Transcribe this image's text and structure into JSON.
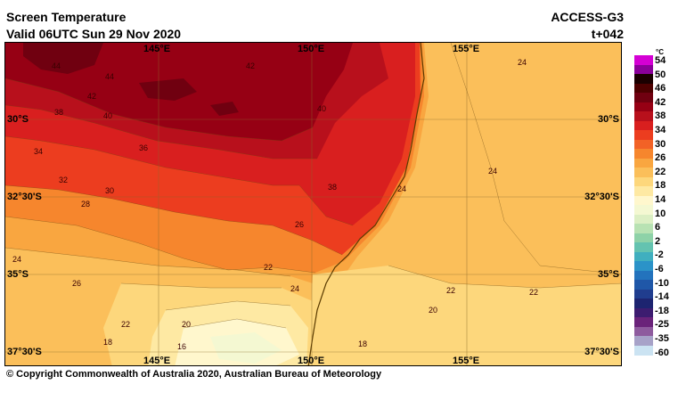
{
  "header": {
    "title": "Screen Temperature",
    "valid": "Valid 06UTC Sun 29 Nov 2020",
    "model": "ACCESS-G3",
    "step": "t+042"
  },
  "map": {
    "lon_labels": [
      "145°E",
      "150°E",
      "155°E"
    ],
    "lat_labels": [
      "30°S",
      "32°30'S",
      "35°S",
      "37°30'S"
    ],
    "contour_labels": [
      "44",
      "42",
      "44",
      "42",
      "40",
      "38",
      "36",
      "34",
      "32",
      "30",
      "28",
      "26",
      "24",
      "22",
      "20",
      "18",
      "16",
      "40",
      "38",
      "26",
      "24",
      "22",
      "24",
      "24",
      "22",
      "20",
      "18",
      "22",
      "24"
    ]
  },
  "legend": {
    "unit": "°C",
    "levels": [
      "54",
      "50",
      "46",
      "42",
      "38",
      "34",
      "30",
      "26",
      "22",
      "18",
      "14",
      "10",
      "6",
      "2",
      "-2",
      "-6",
      "-10",
      "-14",
      "-18",
      "-25",
      "-35",
      "-60"
    ],
    "colors": [
      "#d400d4",
      "#8a0099",
      "#1a0000",
      "#4d0000",
      "#700010",
      "#960014",
      "#b8101c",
      "#d91f1f",
      "#ec3d1f",
      "#f26226",
      "#f6862d",
      "#f9a640",
      "#fbbf5a",
      "#fdd77c",
      "#fee9a3",
      "#fff7cd",
      "#f4f8d2",
      "#dcefc4",
      "#b8e2b3",
      "#8ed2a8",
      "#64c3b0",
      "#40afbf",
      "#2b93c8",
      "#2373bd",
      "#1f57a8",
      "#203d8e",
      "#1d2470",
      "#3d1c70",
      "#6a237a",
      "#8e5b9e",
      "#a7a2c8",
      "#cbe3f2"
    ]
  },
  "copyright": "© Copyright Commonwealth of Australia 2020, Australian Bureau of Meteorology"
}
